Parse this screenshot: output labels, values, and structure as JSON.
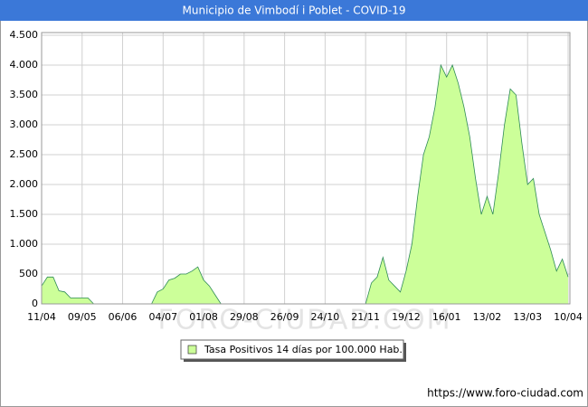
{
  "chart_data": {
    "type": "area",
    "title": "Municipio de Vimbodí i Poblet - COVID-19",
    "categories": [
      "11/04",
      null,
      null,
      null,
      null,
      null,
      null,
      "09/05",
      null,
      null,
      null,
      null,
      null,
      null,
      "06/06",
      null,
      null,
      null,
      null,
      null,
      null,
      "04/07",
      null,
      null,
      null,
      null,
      null,
      null,
      "01/08",
      null,
      null,
      null,
      null,
      null,
      null,
      "29/08",
      null,
      null,
      null,
      null,
      null,
      null,
      "26/09",
      null,
      null,
      null,
      null,
      null,
      null,
      "24/10",
      null,
      null,
      null,
      null,
      null,
      null,
      "21/11",
      null,
      null,
      null,
      null,
      null,
      null,
      "19/12",
      null,
      null,
      null,
      null,
      null,
      null,
      "16/01",
      null,
      null,
      null,
      null,
      null,
      null,
      "13/02",
      null,
      null,
      null,
      null,
      null,
      null,
      "13/03",
      null,
      null,
      null,
      null,
      null,
      null,
      "10/04"
    ],
    "series": [
      {
        "name": "Tasa Positivos 14 días por 100.000 Hab.",
        "color": "#ccff99",
        "line_color": "#2e8b57",
        "values": [
          300,
          450,
          450,
          220,
          200,
          100,
          100,
          100,
          100,
          0,
          0,
          0,
          0,
          0,
          0,
          0,
          0,
          0,
          0,
          0,
          200,
          250,
          400,
          430,
          500,
          500,
          550,
          620,
          400,
          300,
          150,
          0,
          0,
          0,
          0,
          0,
          0,
          0,
          0,
          0,
          0,
          0,
          0,
          0,
          0,
          0,
          0,
          0,
          0,
          0,
          0,
          0,
          0,
          0,
          0,
          0,
          0,
          350,
          450,
          780,
          400,
          300,
          200,
          550,
          1000,
          1800,
          2500,
          2800,
          3300,
          4000,
          3800,
          4000,
          3700,
          3300,
          2800,
          2100,
          1500,
          1800,
          1500,
          2200,
          3000,
          3600,
          3500,
          2700,
          2000,
          2100,
          1500,
          1200,
          900,
          550,
          750,
          450
        ]
      }
    ],
    "ylim": [
      0,
      4500
    ],
    "yticks": [
      0,
      500,
      {
        "value": 1000,
        "label": "1.000"
      },
      {
        "value": 1500,
        "label": "1.500"
      },
      {
        "value": 2000,
        "label": "2.000"
      },
      {
        "value": 2500,
        "label": "2.500"
      },
      {
        "value": 3000,
        "label": "3.000"
      },
      {
        "value": 3500,
        "label": "3.500"
      },
      {
        "value": 4000,
        "label": "4.000"
      },
      {
        "value": 4500,
        "label": "4.500"
      }
    ],
    "grid": true,
    "watermark": "FORO-CIUDAD.COM",
    "source": "https://www.foro-ciudad.com"
  }
}
